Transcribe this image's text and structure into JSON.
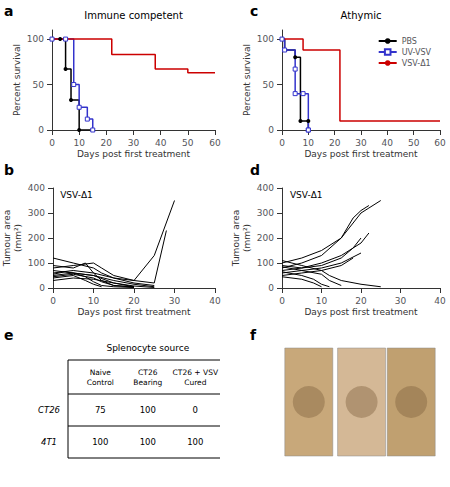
{
  "chart_data": [
    {
      "type": "line",
      "title": "Immune competent",
      "x_label": "Days post first treatment",
      "y_label": "Percent survival",
      "xlim": [
        0,
        60
      ],
      "xticks": [
        0,
        10,
        20,
        30,
        40,
        50,
        60
      ],
      "ylim": [
        0,
        110
      ],
      "yticks": [
        0,
        50,
        100
      ],
      "grid": false,
      "line_style": "step",
      "annotations": [
        "a"
      ],
      "series": [
        {
          "name": "PBS",
          "color": "#000000",
          "marker": "circle",
          "x": [
            0,
            3,
            5,
            7,
            10,
            15
          ],
          "values": [
            100,
            100,
            67,
            33,
            0,
            0
          ]
        },
        {
          "name": "UV-VSV",
          "color": "#3333cc",
          "marker": "open-square",
          "x": [
            0,
            5,
            8,
            10,
            13,
            15
          ],
          "values": [
            100,
            100,
            50,
            25,
            12,
            0
          ]
        },
        {
          "name": "VSV-Δ1",
          "color": "#cc0000",
          "marker": "none",
          "x": [
            0,
            22,
            22,
            38,
            38,
            50,
            50,
            60
          ],
          "values": [
            100,
            100,
            83,
            83,
            67,
            67,
            63,
            63
          ]
        }
      ]
    },
    {
      "type": "line",
      "title": "Athymic",
      "x_label": "Days post first treatment",
      "y_label": "Percent survival",
      "xlim": [
        0,
        60
      ],
      "xticks": [
        0,
        10,
        20,
        30,
        40,
        50,
        60
      ],
      "ylim": [
        0,
        110
      ],
      "yticks": [
        0,
        50,
        100
      ],
      "grid": false,
      "line_style": "step",
      "legend": "upper right",
      "annotations": [
        "c"
      ],
      "series": [
        {
          "name": "PBS",
          "color": "#000000",
          "marker": "circle",
          "x": [
            0,
            1,
            5,
            7,
            10,
            10
          ],
          "values": [
            100,
            88,
            80,
            10,
            10,
            0
          ]
        },
        {
          "name": "UV-VSV",
          "color": "#3333cc",
          "marker": "open-square",
          "x": [
            0,
            1,
            5,
            5,
            8,
            10,
            10
          ],
          "values": [
            100,
            88,
            67,
            40,
            40,
            0,
            0
          ]
        },
        {
          "name": "VSV-Δ1",
          "color": "#cc0000",
          "marker": "none",
          "x": [
            0,
            8,
            8,
            22,
            22,
            28,
            28,
            50,
            50,
            60
          ],
          "values": [
            100,
            100,
            88,
            88,
            10,
            10,
            10,
            10,
            10,
            10
          ]
        }
      ]
    },
    {
      "type": "line",
      "x_label": "Days post first treatment",
      "y_label": "Tumour area\n(mm²)",
      "xlim": [
        0,
        40
      ],
      "xticks": [
        0,
        10,
        20,
        30,
        40
      ],
      "ylim": [
        0,
        400
      ],
      "yticks": [
        0,
        100,
        200,
        300,
        400
      ],
      "grid": false,
      "color": "#000000",
      "annotations": [
        "b",
        "VSV-Δ1"
      ],
      "series": [
        {
          "x": [
            0,
            5,
            10,
            12,
            15,
            20,
            25,
            30
          ],
          "values": [
            120,
            100,
            80,
            60,
            40,
            30,
            130,
            350
          ]
        },
        {
          "x": [
            0,
            5,
            10,
            12,
            15,
            20,
            25,
            28
          ],
          "values": [
            80,
            90,
            100,
            80,
            50,
            30,
            20,
            230
          ]
        },
        {
          "x": [
            0,
            5,
            10,
            15,
            20,
            25
          ],
          "values": [
            60,
            70,
            60,
            40,
            20,
            10
          ]
        },
        {
          "x": [
            0,
            5,
            10,
            15,
            20,
            25
          ],
          "values": [
            50,
            60,
            50,
            30,
            15,
            5
          ]
        },
        {
          "x": [
            0,
            5,
            8,
            10,
            12,
            15,
            20
          ],
          "values": [
            90,
            80,
            100,
            60,
            30,
            10,
            5
          ]
        },
        {
          "x": [
            0,
            5,
            10,
            15,
            20
          ],
          "values": [
            70,
            60,
            50,
            20,
            5
          ]
        },
        {
          "x": [
            0,
            5,
            10,
            12,
            15,
            20
          ],
          "values": [
            45,
            55,
            40,
            25,
            10,
            3
          ]
        },
        {
          "x": [
            0,
            5,
            10,
            15,
            20,
            25
          ],
          "values": [
            30,
            40,
            35,
            20,
            8,
            2
          ]
        },
        {
          "x": [
            0,
            5,
            8,
            10,
            12
          ],
          "values": [
            40,
            50,
            30,
            15,
            5
          ]
        },
        {
          "x": [
            0,
            3,
            5,
            8,
            10,
            12,
            15,
            20
          ],
          "values": [
            55,
            65,
            60,
            45,
            25,
            10,
            5,
            2
          ]
        }
      ]
    },
    {
      "type": "line",
      "x_label": "Days post first treatment",
      "y_label": "Tumour area\n(mm²)",
      "xlim": [
        0,
        40
      ],
      "xticks": [
        0,
        10,
        20,
        30,
        40
      ],
      "ylim": [
        0,
        400
      ],
      "yticks": [
        0,
        100,
        200,
        300,
        400
      ],
      "grid": false,
      "color": "#000000",
      "annotations": [
        "d",
        "VSV-Δ1"
      ],
      "series": [
        {
          "x": [
            0,
            5,
            10,
            15,
            20,
            22,
            25
          ],
          "values": [
            100,
            120,
            150,
            200,
            300,
            320,
            350
          ]
        },
        {
          "x": [
            0,
            5,
            10,
            15,
            18,
            20,
            22
          ],
          "values": [
            80,
            100,
            130,
            200,
            280,
            310,
            330
          ]
        },
        {
          "x": [
            0,
            5,
            10,
            15,
            20,
            22
          ],
          "values": [
            90,
            80,
            100,
            130,
            180,
            220
          ]
        },
        {
          "x": [
            0,
            5,
            10,
            15,
            18,
            20
          ],
          "values": [
            70,
            80,
            90,
            120,
            160,
            200
          ]
        },
        {
          "x": [
            0,
            5,
            10,
            15,
            20
          ],
          "values": [
            60,
            70,
            80,
            100,
            140
          ]
        },
        {
          "x": [
            0,
            5,
            10,
            15,
            18
          ],
          "values": [
            50,
            60,
            70,
            90,
            120
          ]
        },
        {
          "x": [
            0,
            5,
            10,
            12,
            15,
            20,
            25
          ],
          "values": [
            110,
            90,
            70,
            50,
            30,
            15,
            5
          ]
        },
        {
          "x": [
            0,
            5,
            10,
            12,
            15
          ],
          "values": [
            85,
            70,
            55,
            30,
            10
          ]
        },
        {
          "x": [
            0,
            5,
            8,
            10,
            12
          ],
          "values": [
            65,
            50,
            35,
            15,
            5
          ]
        },
        {
          "x": [
            0,
            5,
            8,
            10
          ],
          "values": [
            45,
            35,
            20,
            5
          ]
        }
      ]
    },
    {
      "type": "table",
      "title": "Splenocyte source",
      "columns": [
        "Naive\nControl",
        "CT26\nBearing",
        "CT26 + VSV\nCured"
      ],
      "rows": [
        "CT26",
        "4T1"
      ],
      "values": [
        [
          75,
          100,
          0
        ],
        [
          100,
          100,
          100
        ]
      ],
      "annotations": [
        "e"
      ]
    },
    {
      "type": "image",
      "colors": [
        "#c8a87a",
        "#d4b896",
        "#c0a070"
      ],
      "color": "#7a5c3a",
      "annotations": [
        "f"
      ]
    }
  ]
}
